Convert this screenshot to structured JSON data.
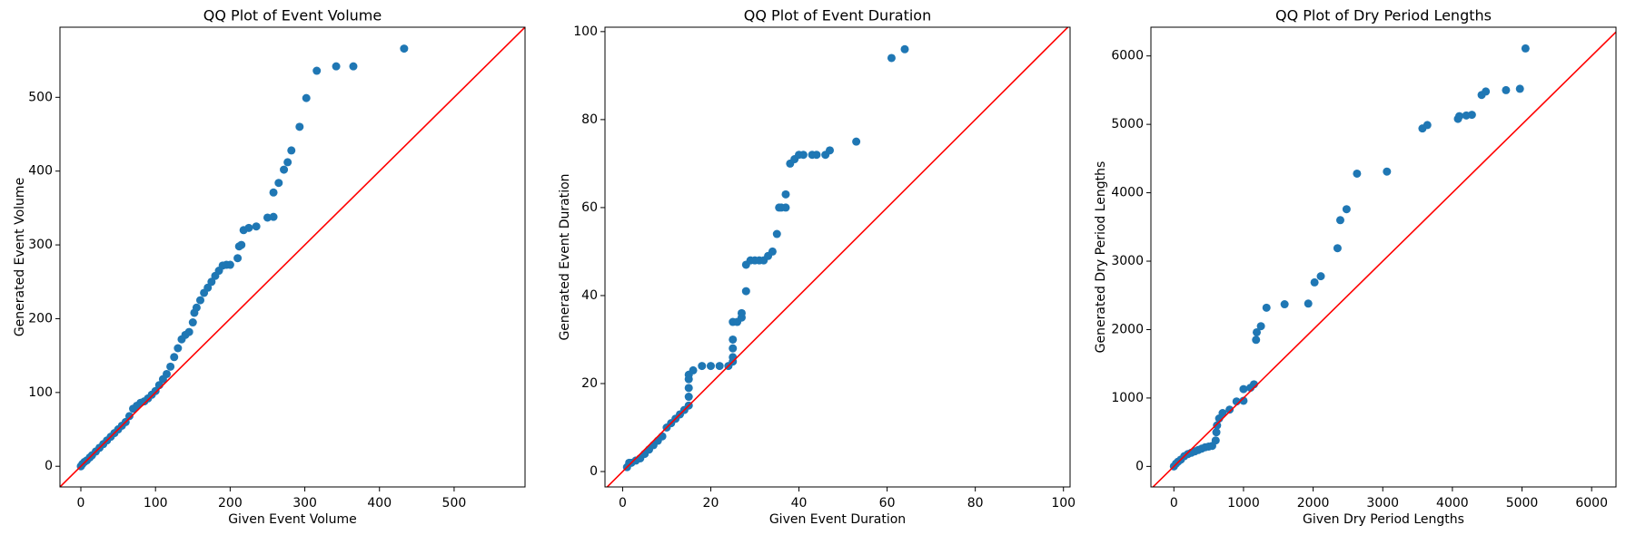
{
  "chart_data": [
    {
      "type": "scatter",
      "title": "QQ Plot of Event Volume",
      "x_label": "Given Event Volume",
      "y_label": "Generated Event Volume",
      "color": "#1f77b4",
      "reference_line_color": "#ff0000",
      "xlim": [
        -28,
        595
      ],
      "ylim": [
        -28,
        595
      ],
      "xticks": [
        0,
        100,
        200,
        300,
        400,
        500
      ],
      "yticks": [
        0,
        100,
        200,
        300,
        400,
        500
      ],
      "x": [
        0,
        2,
        5,
        8,
        12,
        15,
        20,
        25,
        30,
        35,
        40,
        45,
        50,
        55,
        60,
        65,
        70,
        75,
        80,
        85,
        90,
        95,
        100,
        105,
        110,
        115,
        120,
        125,
        130,
        135,
        140,
        145,
        150,
        152,
        155,
        160,
        165,
        170,
        175,
        180,
        185,
        190,
        195,
        200,
        210,
        212,
        215,
        218,
        225,
        235,
        250,
        258,
        258,
        265,
        272,
        277,
        282,
        293,
        302,
        316,
        342,
        365,
        433
      ],
      "y": [
        0,
        3,
        6,
        8,
        12,
        15,
        20,
        25,
        30,
        35,
        40,
        45,
        50,
        55,
        60,
        68,
        78,
        82,
        86,
        88,
        92,
        97,
        102,
        110,
        118,
        125,
        135,
        148,
        160,
        172,
        178,
        182,
        195,
        208,
        215,
        225,
        235,
        242,
        250,
        258,
        265,
        272,
        273,
        273,
        282,
        298,
        300,
        320,
        323,
        325,
        337,
        338,
        371,
        384,
        402,
        412,
        428,
        460,
        499,
        536,
        542,
        542,
        566
      ]
    },
    {
      "type": "scatter",
      "title": "QQ Plot of Event Duration",
      "x_label": "Given Event Duration",
      "y_label": "Generated Event Duration",
      "color": "#1f77b4",
      "reference_line_color": "#ff0000",
      "xlim": [
        -4,
        101.5
      ],
      "ylim": [
        -3.5,
        101
      ],
      "xticks": [
        0,
        20,
        40,
        60,
        80,
        100
      ],
      "yticks": [
        0,
        20,
        40,
        60,
        80,
        100
      ],
      "x": [
        1,
        1.5,
        2,
        3,
        4,
        5,
        6,
        7,
        8,
        9,
        10,
        11,
        12,
        13,
        14,
        15,
        15,
        15,
        15,
        15,
        16,
        18,
        20,
        22,
        24,
        25,
        25,
        25,
        25,
        25,
        26,
        27,
        27,
        28,
        28,
        29,
        30,
        31,
        32,
        33,
        34,
        35,
        35.5,
        36,
        37,
        37,
        38,
        39,
        40,
        41,
        43,
        44,
        46,
        47,
        53,
        61,
        64
      ],
      "y": [
        1,
        2,
        2,
        2.5,
        3,
        4,
        5,
        6,
        7,
        8,
        10,
        11,
        12,
        13,
        14,
        15,
        17,
        19,
        21,
        22,
        23,
        24,
        24,
        24,
        24,
        25,
        26,
        28,
        30,
        34,
        34,
        35,
        36,
        41,
        47,
        48,
        48,
        48,
        48,
        49,
        50,
        54,
        60,
        60,
        60,
        63,
        70,
        71,
        72,
        72,
        72,
        72,
        72,
        73,
        75,
        94,
        96
      ]
    },
    {
      "type": "scatter",
      "title": "QQ Plot of Dry Period Lengths",
      "x_label": "Given Dry Period Lengths",
      "y_label": "Generated Dry Period Lengths",
      "color": "#1f77b4",
      "reference_line_color": "#ff0000",
      "xlim": [
        -330,
        6350
      ],
      "ylim": [
        -300,
        6420
      ],
      "xticks": [
        0,
        1000,
        2000,
        3000,
        4000,
        5000,
        6000
      ],
      "yticks": [
        0,
        1000,
        2000,
        3000,
        4000,
        5000,
        6000
      ],
      "x": [
        0,
        30,
        60,
        100,
        150,
        200,
        250,
        300,
        350,
        400,
        450,
        500,
        550,
        600,
        610,
        620,
        650,
        700,
        800,
        900,
        1000,
        1000,
        1100,
        1150,
        1180,
        1190,
        1250,
        1330,
        1590,
        1930,
        2020,
        2110,
        2350,
        2390,
        2480,
        2630,
        3060,
        3570,
        3640,
        4080,
        4100,
        4200,
        4280,
        4420,
        4480,
        4770,
        4970,
        5050
      ],
      "y": [
        0,
        40,
        70,
        100,
        150,
        180,
        200,
        220,
        240,
        260,
        280,
        290,
        300,
        380,
        500,
        600,
        700,
        780,
        830,
        950,
        960,
        1130,
        1150,
        1200,
        1850,
        1960,
        2050,
        2320,
        2370,
        2380,
        2690,
        2780,
        3190,
        3600,
        3760,
        4280,
        4310,
        4940,
        4990,
        5080,
        5120,
        5130,
        5140,
        5430,
        5480,
        5500,
        5520,
        6110
      ]
    }
  ]
}
